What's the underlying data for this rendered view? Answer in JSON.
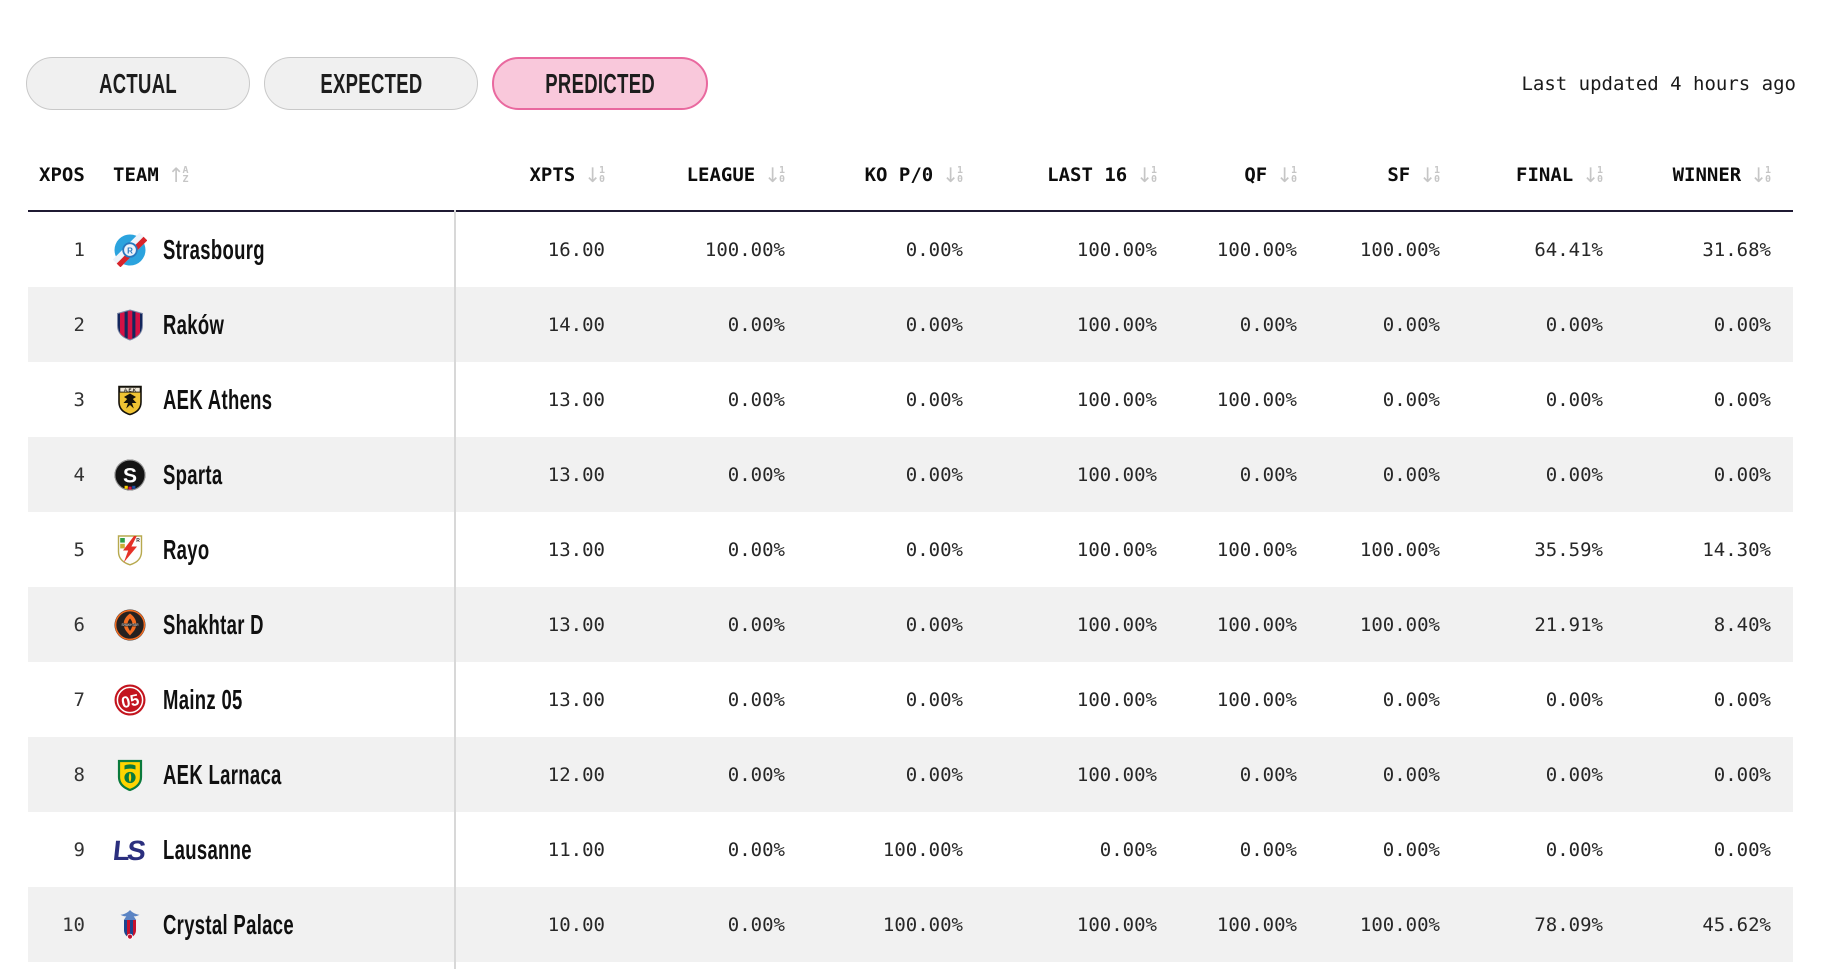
{
  "tabs": [
    {
      "label": "ACTUAL",
      "active": false
    },
    {
      "label": "EXPECTED",
      "active": false
    },
    {
      "label": "PREDICTED",
      "active": true
    }
  ],
  "last_updated": "Last updated 4 hours ago",
  "table": {
    "columns": [
      {
        "key": "xpos",
        "label": "XPOS",
        "sort": null
      },
      {
        "key": "team",
        "label": "TEAM",
        "sort": "az"
      },
      {
        "key": "xpts",
        "label": "XPTS",
        "sort": "10"
      },
      {
        "key": "league",
        "label": "LEAGUE",
        "sort": "10"
      },
      {
        "key": "ko",
        "label": "KO P/0",
        "sort": "10"
      },
      {
        "key": "last16",
        "label": "LAST 16",
        "sort": "10"
      },
      {
        "key": "qf",
        "label": "QF",
        "sort": "10"
      },
      {
        "key": "sf",
        "label": "SF",
        "sort": "10"
      },
      {
        "key": "final",
        "label": "FINAL",
        "sort": "10"
      },
      {
        "key": "winner",
        "label": "WINNER",
        "sort": "10"
      }
    ],
    "rows": [
      {
        "xpos": "1",
        "team": "Strasbourg",
        "logo": "strasbourg-logo-icon",
        "xpts": "16.00",
        "league": "100.00%",
        "ko": "0.00%",
        "last16": "100.00%",
        "qf": "100.00%",
        "sf": "100.00%",
        "final": "64.41%",
        "winner": "31.68%"
      },
      {
        "xpos": "2",
        "team": "Raków",
        "logo": "rakow-logo-icon",
        "xpts": "14.00",
        "league": "0.00%",
        "ko": "0.00%",
        "last16": "100.00%",
        "qf": "0.00%",
        "sf": "0.00%",
        "final": "0.00%",
        "winner": "0.00%"
      },
      {
        "xpos": "3",
        "team": "AEK Athens",
        "logo": "aek-athens-logo-icon",
        "xpts": "13.00",
        "league": "0.00%",
        "ko": "0.00%",
        "last16": "100.00%",
        "qf": "100.00%",
        "sf": "0.00%",
        "final": "0.00%",
        "winner": "0.00%"
      },
      {
        "xpos": "4",
        "team": "Sparta",
        "logo": "sparta-logo-icon",
        "xpts": "13.00",
        "league": "0.00%",
        "ko": "0.00%",
        "last16": "100.00%",
        "qf": "0.00%",
        "sf": "0.00%",
        "final": "0.00%",
        "winner": "0.00%"
      },
      {
        "xpos": "5",
        "team": "Rayo",
        "logo": "rayo-logo-icon",
        "xpts": "13.00",
        "league": "0.00%",
        "ko": "0.00%",
        "last16": "100.00%",
        "qf": "100.00%",
        "sf": "100.00%",
        "final": "35.59%",
        "winner": "14.30%"
      },
      {
        "xpos": "6",
        "team": "Shakhtar D",
        "logo": "shakhtar-d-logo-icon",
        "xpts": "13.00",
        "league": "0.00%",
        "ko": "0.00%",
        "last16": "100.00%",
        "qf": "100.00%",
        "sf": "100.00%",
        "final": "21.91%",
        "winner": "8.40%"
      },
      {
        "xpos": "7",
        "team": "Mainz 05",
        "logo": "mainz-05-logo-icon",
        "xpts": "13.00",
        "league": "0.00%",
        "ko": "0.00%",
        "last16": "100.00%",
        "qf": "100.00%",
        "sf": "0.00%",
        "final": "0.00%",
        "winner": "0.00%"
      },
      {
        "xpos": "8",
        "team": "AEK Larnaca",
        "logo": "aek-larnaca-logo-icon",
        "xpts": "12.00",
        "league": "0.00%",
        "ko": "0.00%",
        "last16": "100.00%",
        "qf": "0.00%",
        "sf": "0.00%",
        "final": "0.00%",
        "winner": "0.00%"
      },
      {
        "xpos": "9",
        "team": "Lausanne",
        "logo": "lausanne-logo-icon",
        "xpts": "11.00",
        "league": "0.00%",
        "ko": "100.00%",
        "last16": "0.00%",
        "qf": "0.00%",
        "sf": "0.00%",
        "final": "0.00%",
        "winner": "0.00%"
      },
      {
        "xpos": "10",
        "team": "Crystal Palace",
        "logo": "crystal-palace-logo-icon",
        "xpts": "10.00",
        "league": "0.00%",
        "ko": "100.00%",
        "last16": "100.00%",
        "qf": "100.00%",
        "sf": "100.00%",
        "final": "78.09%",
        "winner": "45.62%"
      }
    ]
  },
  "colors": {
    "active_tab_bg": "#f9c8db",
    "active_tab_border": "#e9699f",
    "inactive_tab_bg": "#f0f0f0",
    "row_stripe": "#f1f1f1",
    "header_border": "#1f1a33",
    "column_divider": "#d8d8d8",
    "sort_icon": "#c6c6c6"
  }
}
